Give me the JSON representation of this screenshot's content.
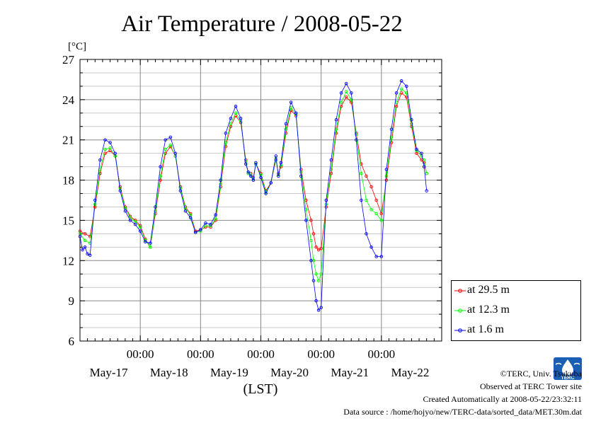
{
  "chart_data": {
    "type": "line",
    "title": "Air Temperature / 2008-05-22",
    "unit_label": "[°C]",
    "xlabel": "(LST)",
    "ylim": [
      6,
      27
    ],
    "yticks": [
      "6",
      "9",
      "12",
      "15",
      "18",
      "21",
      "24",
      "27"
    ],
    "xlim": [
      0,
      144
    ],
    "xticks": [
      {
        "x": 24,
        "label": "00:00"
      },
      {
        "x": 48,
        "label": "00:00"
      },
      {
        "x": 72,
        "label": "00:00"
      },
      {
        "x": 96,
        "label": "00:00"
      },
      {
        "x": 120,
        "label": "00:00"
      }
    ],
    "day_labels": [
      {
        "x": 12,
        "label": "May-17"
      },
      {
        "x": 36,
        "label": "May-18"
      },
      {
        "x": 60,
        "label": "May-19"
      },
      {
        "x": 84,
        "label": "May-20"
      },
      {
        "x": 108,
        "label": "May-21"
      },
      {
        "x": 132,
        "label": "May-22"
      }
    ],
    "grid": true,
    "legend_position": "bottom-right",
    "series": [
      {
        "name": "at 29.5 m",
        "color": "#ff0000",
        "points": [
          [
            0,
            14.2
          ],
          [
            2,
            14.0
          ],
          [
            4,
            13.8
          ],
          [
            6,
            16.0
          ],
          [
            8,
            18.5
          ],
          [
            10,
            20.0
          ],
          [
            12,
            20.2
          ],
          [
            14,
            19.8
          ],
          [
            16,
            17.5
          ],
          [
            18,
            16.0
          ],
          [
            20,
            15.3
          ],
          [
            22,
            15.0
          ],
          [
            24,
            14.6
          ],
          [
            26,
            13.6
          ],
          [
            28,
            13.0
          ],
          [
            30,
            15.5
          ],
          [
            32,
            18.0
          ],
          [
            34,
            20.0
          ],
          [
            36,
            20.5
          ],
          [
            38,
            19.8
          ],
          [
            40,
            17.5
          ],
          [
            42,
            16.0
          ],
          [
            44,
            15.5
          ],
          [
            46,
            14.2
          ],
          [
            48,
            14.3
          ],
          [
            50,
            14.5
          ],
          [
            52,
            14.5
          ],
          [
            54,
            15.0
          ],
          [
            56,
            17.5
          ],
          [
            58,
            20.5
          ],
          [
            60,
            22.0
          ],
          [
            62,
            22.8
          ],
          [
            64,
            22.3
          ],
          [
            66,
            19.5
          ],
          [
            67,
            18.5
          ],
          [
            68,
            18.5
          ],
          [
            69,
            18.2
          ],
          [
            70,
            19.2
          ],
          [
            72,
            18.5
          ],
          [
            74,
            17.2
          ],
          [
            76,
            17.8
          ],
          [
            78,
            19.5
          ],
          [
            79,
            18.5
          ],
          [
            80,
            19.0
          ],
          [
            82,
            21.5
          ],
          [
            84,
            23.2
          ],
          [
            86,
            22.8
          ],
          [
            88,
            18.8
          ],
          [
            90,
            16.5
          ],
          [
            92,
            15.0
          ],
          [
            93,
            14.0
          ],
          [
            94,
            13.0
          ],
          [
            95,
            12.8
          ],
          [
            96,
            12.9
          ],
          [
            98,
            16.0
          ],
          [
            100,
            18.5
          ],
          [
            102,
            21.5
          ],
          [
            104,
            23.5
          ],
          [
            106,
            24.2
          ],
          [
            108,
            23.8
          ],
          [
            110,
            21.5
          ],
          [
            112,
            19.2
          ],
          [
            114,
            18.3
          ],
          [
            116,
            17.5
          ],
          [
            118,
            16.5
          ],
          [
            120,
            15.5
          ],
          [
            122,
            18.0
          ],
          [
            124,
            20.8
          ],
          [
            126,
            23.5
          ],
          [
            128,
            24.5
          ],
          [
            130,
            24.2
          ],
          [
            132,
            22.0
          ],
          [
            134,
            20.0
          ],
          [
            136,
            19.5
          ],
          [
            137,
            19.3
          ],
          [
            138,
            18.5
          ]
        ]
      },
      {
        "name": "at 12.3 m",
        "color": "#00ff00",
        "points": [
          [
            0,
            14.0
          ],
          [
            2,
            13.5
          ],
          [
            4,
            13.3
          ],
          [
            6,
            16.2
          ],
          [
            8,
            18.8
          ],
          [
            10,
            20.3
          ],
          [
            12,
            20.4
          ],
          [
            14,
            19.8
          ],
          [
            16,
            17.4
          ],
          [
            18,
            15.9
          ],
          [
            20,
            15.2
          ],
          [
            22,
            14.9
          ],
          [
            24,
            14.5
          ],
          [
            26,
            13.5
          ],
          [
            28,
            13.0
          ],
          [
            30,
            15.7
          ],
          [
            32,
            18.3
          ],
          [
            34,
            20.3
          ],
          [
            36,
            20.6
          ],
          [
            38,
            19.8
          ],
          [
            40,
            17.4
          ],
          [
            42,
            15.9
          ],
          [
            44,
            15.4
          ],
          [
            46,
            14.1
          ],
          [
            48,
            14.2
          ],
          [
            50,
            14.6
          ],
          [
            52,
            14.6
          ],
          [
            54,
            15.1
          ],
          [
            56,
            17.7
          ],
          [
            58,
            20.8
          ],
          [
            60,
            22.2
          ],
          [
            62,
            23.0
          ],
          [
            64,
            22.4
          ],
          [
            66,
            19.4
          ],
          [
            67,
            18.5
          ],
          [
            68,
            18.4
          ],
          [
            69,
            18.1
          ],
          [
            70,
            19.2
          ],
          [
            72,
            18.4
          ],
          [
            74,
            17.1
          ],
          [
            76,
            17.8
          ],
          [
            78,
            19.6
          ],
          [
            79,
            18.4
          ],
          [
            80,
            19.1
          ],
          [
            82,
            21.8
          ],
          [
            84,
            23.4
          ],
          [
            86,
            22.9
          ],
          [
            88,
            18.6
          ],
          [
            90,
            15.8
          ],
          [
            92,
            13.5
          ],
          [
            93,
            12.0
          ],
          [
            94,
            11.0
          ],
          [
            95,
            10.5
          ],
          [
            96,
            11.0
          ],
          [
            98,
            16.2
          ],
          [
            100,
            18.8
          ],
          [
            102,
            21.8
          ],
          [
            104,
            23.8
          ],
          [
            106,
            24.6
          ],
          [
            108,
            24.0
          ],
          [
            110,
            21.4
          ],
          [
            112,
            18.5
          ],
          [
            114,
            16.5
          ],
          [
            116,
            15.8
          ],
          [
            118,
            15.5
          ],
          [
            120,
            15.0
          ],
          [
            122,
            18.3
          ],
          [
            124,
            21.2
          ],
          [
            126,
            23.8
          ],
          [
            128,
            24.8
          ],
          [
            130,
            24.5
          ],
          [
            132,
            22.2
          ],
          [
            134,
            20.2
          ],
          [
            136,
            19.8
          ],
          [
            137,
            19.5
          ],
          [
            138,
            18.5
          ]
        ]
      },
      {
        "name": "at 1.6 m",
        "color": "#0000ff",
        "points": [
          [
            0,
            13.8
          ],
          [
            1,
            12.8
          ],
          [
            2,
            13.0
          ],
          [
            3,
            12.5
          ],
          [
            4,
            12.4
          ],
          [
            6,
            16.5
          ],
          [
            8,
            19.5
          ],
          [
            10,
            21.0
          ],
          [
            12,
            20.8
          ],
          [
            14,
            20.0
          ],
          [
            16,
            17.2
          ],
          [
            18,
            15.7
          ],
          [
            20,
            15.0
          ],
          [
            22,
            14.7
          ],
          [
            24,
            14.2
          ],
          [
            26,
            13.4
          ],
          [
            28,
            13.3
          ],
          [
            30,
            16.0
          ],
          [
            32,
            19.0
          ],
          [
            34,
            21.0
          ],
          [
            36,
            21.2
          ],
          [
            38,
            20.0
          ],
          [
            40,
            17.2
          ],
          [
            42,
            15.7
          ],
          [
            44,
            15.2
          ],
          [
            46,
            14.1
          ],
          [
            48,
            14.3
          ],
          [
            50,
            14.8
          ],
          [
            52,
            14.7
          ],
          [
            54,
            15.4
          ],
          [
            56,
            18.0
          ],
          [
            58,
            21.5
          ],
          [
            60,
            22.6
          ],
          [
            62,
            23.5
          ],
          [
            64,
            22.6
          ],
          [
            66,
            19.2
          ],
          [
            67,
            18.6
          ],
          [
            68,
            18.3
          ],
          [
            69,
            18.0
          ],
          [
            70,
            19.3
          ],
          [
            72,
            18.2
          ],
          [
            74,
            17.0
          ],
          [
            76,
            17.8
          ],
          [
            78,
            19.8
          ],
          [
            79,
            18.3
          ],
          [
            80,
            19.3
          ],
          [
            82,
            22.2
          ],
          [
            84,
            23.8
          ],
          [
            86,
            23.0
          ],
          [
            88,
            18.3
          ],
          [
            90,
            15.0
          ],
          [
            92,
            12.0
          ],
          [
            93,
            10.5
          ],
          [
            94,
            9.0
          ],
          [
            95,
            8.3
          ],
          [
            96,
            8.5
          ],
          [
            98,
            16.5
          ],
          [
            100,
            19.5
          ],
          [
            102,
            22.5
          ],
          [
            104,
            24.5
          ],
          [
            106,
            25.2
          ],
          [
            108,
            24.5
          ],
          [
            110,
            21.0
          ],
          [
            112,
            16.5
          ],
          [
            114,
            14.0
          ],
          [
            116,
            13.0
          ],
          [
            118,
            12.3
          ],
          [
            120,
            12.3
          ],
          [
            122,
            18.8
          ],
          [
            124,
            21.8
          ],
          [
            126,
            24.5
          ],
          [
            128,
            25.4
          ],
          [
            130,
            25.0
          ],
          [
            132,
            22.5
          ],
          [
            134,
            20.3
          ],
          [
            136,
            20.0
          ],
          [
            137,
            19.0
          ],
          [
            138,
            17.2
          ]
        ]
      }
    ]
  },
  "credits": {
    "line1": "©TERC, Univ. Tsukuba",
    "line2": "Observed at TERC Tower site",
    "line3": "Created Automatically at 2008-05-22/23:32:11",
    "line4": "Data source : /home/hojyo/new/TERC-data/sorted_data/MET.30m.dat"
  },
  "logo": {
    "text": "TERC",
    "color": "#1a5fb4"
  }
}
